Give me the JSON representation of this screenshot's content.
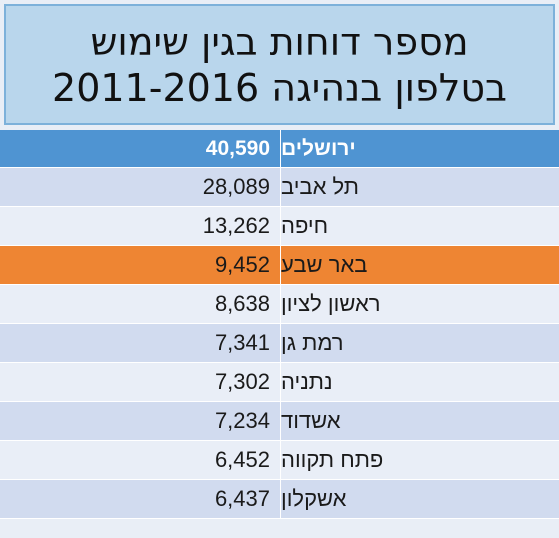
{
  "title": {
    "line1": "מספר דוחות בגין שימוש",
    "line2": "בטלפון בנהיגה 2011-2016"
  },
  "rows": [
    {
      "city": "ירושלים",
      "value": "40,590"
    },
    {
      "city": "תל אביב",
      "value": "28,089"
    },
    {
      "city": "חיפה",
      "value": "13,262"
    },
    {
      "city": "באר שבע",
      "value": "9,452"
    },
    {
      "city": "ראשון לציון",
      "value": "8,638"
    },
    {
      "city": "רמת גן",
      "value": "7,341"
    },
    {
      "city": "נתניה",
      "value": "7,302"
    },
    {
      "city": "אשדוד",
      "value": "7,234"
    },
    {
      "city": "פתח תקווה",
      "value": "6,452"
    },
    {
      "city": "אשקלון",
      "value": "6,437"
    }
  ],
  "colors": {
    "header_row": "#4f94d2",
    "highlight_row": "#ee8533",
    "title_background": "#b9d6ec"
  }
}
